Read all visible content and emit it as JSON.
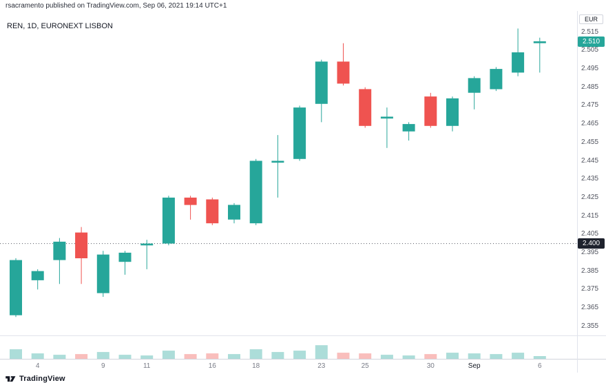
{
  "meta": {
    "publish_line": "rsacramento published on TradingView.com, Sep 06, 2021 19:14 UTC+1"
  },
  "legend": {
    "symbol": "REN",
    "interval": "1D",
    "exchange": "EURONEXT LISBON",
    "text": "REN, 1D, EURONEXT LISBON"
  },
  "price_axis": {
    "unit": "EUR",
    "ticks": [
      "2.515",
      "2.505",
      "2.495",
      "2.485",
      "2.475",
      "2.465",
      "2.455",
      "2.445",
      "2.435",
      "2.425",
      "2.415",
      "2.405",
      "2.395",
      "2.385",
      "2.375",
      "2.365",
      "2.355"
    ],
    "last_badge": {
      "text": "2.510",
      "bg": "#26a69a"
    },
    "line_badge": {
      "text": "2.400",
      "bg": "#1e222d"
    }
  },
  "footer": {
    "brand": "TradingView"
  },
  "chart_data": {
    "type": "candlestick",
    "title": "REN, 1D, EURONEXT LISBON",
    "currency": "EUR",
    "ylim": [
      2.35,
      2.5265
    ],
    "grid": false,
    "price_line": 2.4,
    "last_price": 2.51,
    "colors": {
      "up": "#26a69a",
      "down": "#ef5350",
      "vol_up": "rgba(38,166,154,0.38)",
      "vol_down": "rgba(239,83,80,0.38)"
    },
    "candles": [
      {
        "date": "Aug 3",
        "o": 2.361,
        "h": 2.392,
        "l": 2.36,
        "c": 2.391,
        "v": 0.42
      },
      {
        "date": "Aug 4",
        "o": 2.38,
        "h": 2.386,
        "l": 2.375,
        "c": 2.385,
        "v": 0.24
      },
      {
        "date": "Aug 5",
        "o": 2.391,
        "h": 2.403,
        "l": 2.378,
        "c": 2.401,
        "v": 0.18
      },
      {
        "date": "Aug 6",
        "o": 2.406,
        "h": 2.409,
        "l": 2.378,
        "c": 2.392,
        "v": 0.21
      },
      {
        "date": "Aug 9",
        "o": 2.373,
        "h": 2.396,
        "l": 2.371,
        "c": 2.394,
        "v": 0.3
      },
      {
        "date": "Aug 10",
        "o": 2.39,
        "h": 2.396,
        "l": 2.383,
        "c": 2.395,
        "v": 0.18
      },
      {
        "date": "Aug 11",
        "o": 2.399,
        "h": 2.402,
        "l": 2.386,
        "c": 2.4,
        "v": 0.15
      },
      {
        "date": "Aug 12",
        "o": 2.4,
        "h": 2.426,
        "l": 2.399,
        "c": 2.425,
        "v": 0.36
      },
      {
        "date": "Aug 13",
        "o": 2.425,
        "h": 2.426,
        "l": 2.413,
        "c": 2.421,
        "v": 0.21
      },
      {
        "date": "Aug 16",
        "o": 2.424,
        "h": 2.425,
        "l": 2.41,
        "c": 2.411,
        "v": 0.24
      },
      {
        "date": "Aug 17",
        "o": 2.413,
        "h": 2.422,
        "l": 2.411,
        "c": 2.421,
        "v": 0.21
      },
      {
        "date": "Aug 18",
        "o": 2.411,
        "h": 2.446,
        "l": 2.41,
        "c": 2.445,
        "v": 0.42
      },
      {
        "date": "Aug 19",
        "o": 2.444,
        "h": 2.459,
        "l": 2.425,
        "c": 2.445,
        "v": 0.3
      },
      {
        "date": "Aug 20",
        "o": 2.446,
        "h": 2.475,
        "l": 2.445,
        "c": 2.474,
        "v": 0.36
      },
      {
        "date": "Aug 23",
        "o": 2.476,
        "h": 2.5,
        "l": 2.466,
        "c": 2.499,
        "v": 0.6
      },
      {
        "date": "Aug 24",
        "o": 2.499,
        "h": 2.509,
        "l": 2.486,
        "c": 2.487,
        "v": 0.27
      },
      {
        "date": "Aug 25",
        "o": 2.484,
        "h": 2.485,
        "l": 2.463,
        "c": 2.464,
        "v": 0.24
      },
      {
        "date": "Aug 26",
        "o": 2.468,
        "h": 2.474,
        "l": 2.452,
        "c": 2.469,
        "v": 0.18
      },
      {
        "date": "Aug 27",
        "o": 2.461,
        "h": 2.466,
        "l": 2.456,
        "c": 2.465,
        "v": 0.15
      },
      {
        "date": "Aug 30",
        "o": 2.48,
        "h": 2.482,
        "l": 2.463,
        "c": 2.464,
        "v": 0.21
      },
      {
        "date": "Aug 31",
        "o": 2.464,
        "h": 2.48,
        "l": 2.461,
        "c": 2.479,
        "v": 0.27
      },
      {
        "date": "Sep 1",
        "o": 2.482,
        "h": 2.491,
        "l": 2.473,
        "c": 2.49,
        "v": 0.24
      },
      {
        "date": "Sep 2",
        "o": 2.484,
        "h": 2.496,
        "l": 2.483,
        "c": 2.495,
        "v": 0.21
      },
      {
        "date": "Sep 3",
        "o": 2.493,
        "h": 2.517,
        "l": 2.491,
        "c": 2.504,
        "v": 0.27
      },
      {
        "date": "Sep 6",
        "o": 2.509,
        "h": 2.512,
        "l": 2.493,
        "c": 2.51,
        "v": 0.12
      }
    ],
    "x_labels": [
      {
        "text": "4",
        "index": 1
      },
      {
        "text": "9",
        "index": 4
      },
      {
        "text": "11",
        "index": 6
      },
      {
        "text": "16",
        "index": 9
      },
      {
        "text": "18",
        "index": 11
      },
      {
        "text": "23",
        "index": 14
      },
      {
        "text": "25",
        "index": 16
      },
      {
        "text": "30",
        "index": 19
      },
      {
        "text": "Sep",
        "index": 21,
        "strong": true
      },
      {
        "text": "6",
        "index": 24
      }
    ]
  }
}
